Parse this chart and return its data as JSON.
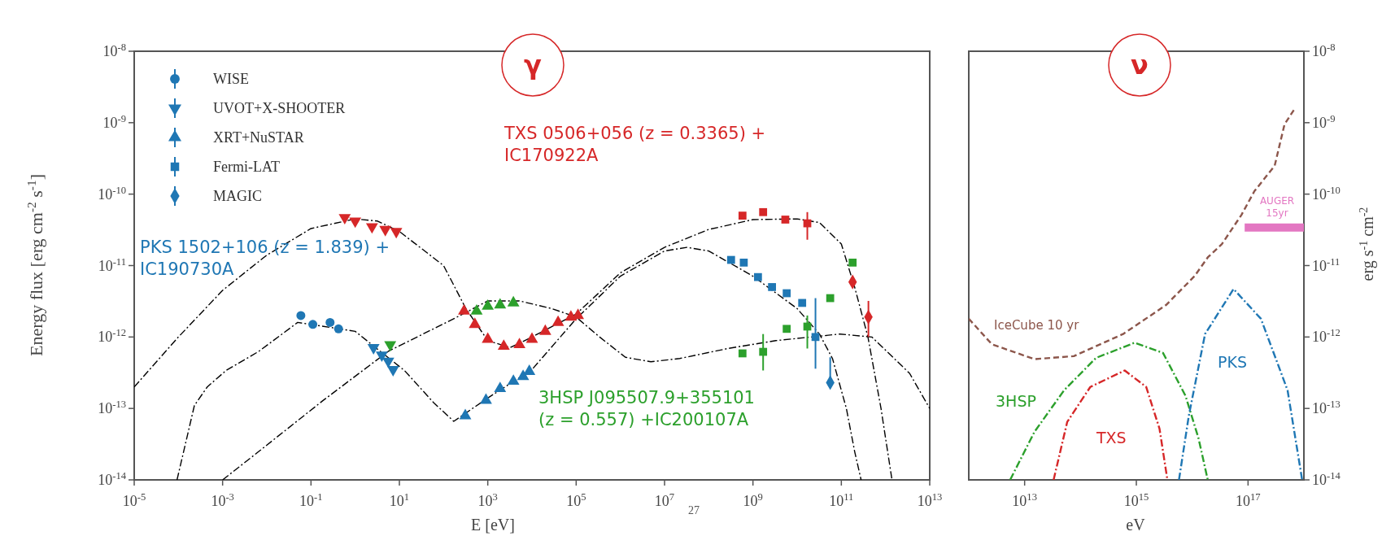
{
  "chart_data": [
    {
      "type": "scatter",
      "title": "γ",
      "xlabel": "E [eV]",
      "ylabel": "Energy flux [erg cm$^{-2}$ s$^{-1}$]",
      "xlim": [
        1e-05,
        10000000000000.0
      ],
      "ylim": [
        1e-14,
        1e-08
      ],
      "xticks": [
        {
          "value": 1e-05,
          "label": "10$^{-5}$"
        },
        {
          "value": 0.001,
          "label": "10$^{-3}$"
        },
        {
          "value": 0.1,
          "label": "10$^{-1}$"
        },
        {
          "value": 10.0,
          "label": "10$^{1}$"
        },
        {
          "value": 1000.0,
          "label": "10$^{3}$"
        },
        {
          "value": 100000.0,
          "label": "10$^{5}$"
        },
        {
          "value": 10000000.0,
          "label": "10$^{7}$"
        },
        {
          "value": 1000000000.0,
          "label": "10$^{9}$"
        },
        {
          "value": 100000000000.0,
          "label": "10$^{11}$"
        },
        {
          "value": 10000000000000.0,
          "label": "10$^{13}$"
        }
      ],
      "yticks": [
        {
          "value": 1e-14,
          "label": "10$^{-14}$"
        },
        {
          "value": 1e-13,
          "label": "10$^{-13}$"
        },
        {
          "value": 1e-12,
          "label": "10$^{-12}$"
        },
        {
          "value": 1e-11,
          "label": "10$^{-11}$"
        },
        {
          "value": 1e-10,
          "label": "10$^{-10}$"
        },
        {
          "value": 1e-09,
          "label": "10$^{-9}$"
        },
        {
          "value": 1e-08,
          "label": "10$^{-8}$"
        }
      ],
      "log": "xy",
      "legend": "top left",
      "annotations": [
        "PKS 1502+106 (z = 1.839) + IC190730A",
        "TXS 0506+056 (z = 0.3365) + IC170922A",
        "3HSP J095507.9+355101 (z = 0.557) +IC200107A",
        "27"
      ],
      "series": [
        {
          "name": "WISE",
          "marker": "circle",
          "color": "#1f77b4",
          "x": [
            0.059,
            0.11,
            0.27,
            0.42
          ],
          "values": [
            2e-12,
            1.5e-12,
            1.6e-12,
            1.3e-12
          ]
        },
        {
          "name": "UVOT+X-SHOOTER",
          "marker": "triangle-down",
          "color": "#1f77b4",
          "x": [
            2.6,
            4.0,
            5.6,
            7.2
          ],
          "values": [
            7.1e-13,
            5.6e-13,
            4.6e-13,
            3.5e-13
          ]
        },
        {
          "name": "XRT+NuSTAR",
          "marker": "triangle",
          "color": "#1f77b4",
          "x": [
            310,
            910,
            1900,
            3800,
            6300,
            8700
          ],
          "values": [
            7.9e-14,
            1.3e-13,
            1.9e-13,
            2.4e-13,
            2.8e-13,
            3.3e-13
          ]
        },
        {
          "name": "Fermi-LAT",
          "marker": "square",
          "color": "#1f77b4",
          "x": [
            320000000.0,
            620000000.0,
            1300000000.0,
            2700000000.0,
            5800000000.0,
            13000000000.0,
            26000000000.0
          ],
          "values": [
            1.2e-11,
            1.1e-11,
            6.9e-12,
            5e-12,
            4.1e-12,
            3e-12,
            1e-12
          ],
          "errors": [
            null,
            null,
            null,
            null,
            null,
            null,
            [
              3.6e-13,
              3.5e-12
            ]
          ]
        },
        {
          "name": "MAGIC",
          "marker": "diamond",
          "color": "#1f77b4",
          "x": [
            56000000000.0
          ],
          "values": [
            2.3e-13
          ],
          "errors": [
            [
              2.3e-13,
              5.2e-13
            ]
          ]
        },
        {
          "type": "scatter",
          "marker": "triangle-down",
          "color": "#d62728",
          "x": [
            0.58,
            1.0,
            2.4,
            4.8,
            8.5
          ],
          "values": [
            4.7e-11,
            4.2e-11,
            3.5e-11,
            3.2e-11,
            3e-11
          ]
        },
        {
          "type": "scatter",
          "marker": "triangle",
          "color": "#d62728",
          "x": [
            290,
            510,
            1000,
            2300,
            5200,
            10000.0,
            20000.0,
            39000.0,
            76000.0,
            110000.0
          ],
          "values": [
            2.3e-12,
            1.5e-12,
            9.3e-13,
            7.4e-13,
            7.8e-13,
            9.3e-13,
            1.2e-12,
            1.6e-12,
            1.9e-12,
            2e-12
          ]
        },
        {
          "type": "scatter",
          "marker": "square",
          "color": "#d62728",
          "x": [
            580000000.0,
            1700000000.0,
            5400000000.0,
            17000000000.0
          ],
          "values": [
            5e-11,
            5.6e-11,
            4.4e-11,
            3.9e-11
          ],
          "errors": [
            null,
            null,
            null,
            [
              2.3e-11,
              5.6e-11
            ]
          ]
        },
        {
          "type": "scatter",
          "marker": "diamond",
          "color": "#d62728",
          "x": [
            180000000000.0,
            410000000000.0
          ],
          "values": [
            5.9e-12,
            1.9e-12
          ],
          "errors": [
            null,
            [
              1e-12,
              3.2e-12
            ]
          ]
        },
        {
          "type": "scatter",
          "marker": "triangle-down",
          "color": "#2ca02c",
          "x": [
            6.2
          ],
          "values": [
            7.8e-13
          ]
        },
        {
          "type": "scatter",
          "marker": "triangle",
          "color": "#2ca02c",
          "x": [
            560,
            1000,
            1900,
            3800
          ],
          "values": [
            2.3e-12,
            2.7e-12,
            2.8e-12,
            3e-12
          ]
        },
        {
          "type": "scatter",
          "marker": "square",
          "color": "#2ca02c",
          "x": [
            580000000.0,
            1700000000.0,
            5800000000.0,
            17000000000.0,
            56000000000.0,
            180000000000.0
          ],
          "values": [
            5.9e-13,
            6.2e-13,
            1.3e-12,
            1.4e-12,
            3.5e-12,
            1.1e-11
          ],
          "errors": [
            null,
            [
              3.4e-13,
              1.1e-12
            ],
            null,
            [
              6.9e-13,
              2e-12
            ],
            null,
            null
          ]
        },
        {
          "type": "line",
          "marker": "none",
          "line_style": "dashdot",
          "color": "#000000",
          "x": [
            1e-05,
            0.0001,
            0.001,
            0.01,
            0.1,
            1,
            3.2,
            10,
            100,
            320,
            1000.0,
            3200,
            10000.0,
            100000.0,
            1000000.0,
            10000000.0,
            100000000.0,
            1000000000.0,
            10000000000.0,
            32000000000.0,
            100000000000.0,
            200000000000.0,
            400000000000.0,
            790000000000.0,
            1400000000000.0
          ],
          "values": [
            2e-13,
            1e-12,
            4.5e-12,
            1.4e-11,
            3.3e-11,
            4.5e-11,
            4.2e-11,
            3e-11,
            1e-11,
            2.5e-12,
            8.9e-13,
            7.1e-13,
            1e-12,
            2.1e-12,
            7.9e-12,
            1.8e-11,
            3.2e-11,
            4.4e-11,
            4.5e-11,
            4e-11,
            2e-11,
            5e-12,
            1e-12,
            1e-13,
            1e-14
          ]
        },
        {
          "type": "line",
          "marker": "none",
          "line_style": "dashdot",
          "color": "#000000",
          "x": [
            9.3e-05,
            0.00023,
            0.00045,
            0.0012,
            0.0066,
            0.05,
            0.45,
            1.0,
            2.4,
            13,
            60,
            170,
            1000,
            10000.0,
            100000.0,
            1000000.0,
            10000000.0,
            32000000.0,
            100000000.0,
            1000000000.0,
            10000000000.0,
            32000000000.0,
            63000000000.0,
            130000000000.0,
            200000000000.0,
            280000000000.0
          ],
          "values": [
            1e-14,
            1.1e-13,
            2e-13,
            3.4e-13,
            6.3e-13,
            1.6e-12,
            1.3e-12,
            1.2e-12,
            7.8e-13,
            3.4e-13,
            1.2e-13,
            6.6e-14,
            1.4e-13,
            3.5e-13,
            1.8e-12,
            7.1e-12,
            1.6e-11,
            1.8e-11,
            1.6e-11,
            7.1e-12,
            2.5e-12,
            1.1e-12,
            5e-13,
            1e-13,
            2.5e-14,
            1e-14
          ]
        },
        {
          "type": "line",
          "marker": "none",
          "line_style": "dashdot",
          "color": "#000000",
          "x": [
            0.001,
            0.0066,
            0.19,
            5.6,
            170,
            1000.0,
            5200,
            28000.0,
            100000.0,
            340000.0,
            1300000.0,
            4900000.0,
            22000000.0,
            270000000.0,
            3300000000.0,
            93000000000.0,
            490000000000.0,
            3500000000000.0,
            10000000000000.0
          ],
          "values": [
            1e-14,
            2.5e-14,
            1.3e-13,
            6.3e-13,
            1.8e-12,
            3.2e-12,
            3.2e-12,
            2.5e-12,
            1.9e-12,
            1e-12,
            5.2e-13,
            4.5e-13,
            5e-13,
            6.9e-13,
            8.9e-13,
            1.1e-12,
            1e-12,
            3.1e-13,
            1e-13
          ]
        }
      ]
    },
    {
      "type": "line",
      "title": "ν",
      "xlabel": "eV",
      "ylabel": "erg s$^{-1}$ cm$^{-2}$",
      "xlim": [
        1000000000000.0,
        1e+18
      ],
      "ylim": [
        1e-14,
        1e-08
      ],
      "xticks": [
        {
          "value": 10000000000000.0,
          "label": "10$^{13}$"
        },
        {
          "value": 1000000000000000.0,
          "label": "10$^{15}$"
        },
        {
          "value": 1e+17,
          "label": "10$^{17}$"
        }
      ],
      "yticks": [
        {
          "value": 1e-14,
          "label": "10$^{-14}$"
        },
        {
          "value": 1e-13,
          "label": "10$^{-13}$"
        },
        {
          "value": 1e-12,
          "label": "10$^{-12}$"
        },
        {
          "value": 1e-11,
          "label": "10$^{-11}$"
        },
        {
          "value": 1e-10,
          "label": "10$^{-10}$"
        },
        {
          "value": 1e-09,
          "label": "10$^{-9}$"
        },
        {
          "value": 1e-08,
          "label": "10$^{-8}$"
        }
      ],
      "log": "xy",
      "series": [
        {
          "name": "IceCube 10 yr",
          "line_style": "dashed",
          "color": "#8c564b",
          "x": [
            1000000000000.0,
            2600000000000.0,
            15000000000000.0,
            76000000000000.0,
            580000000000000.0,
            3400000000000000.0,
            1.1e+16,
            1.9e+16,
            3.4e+16,
            7.6e+16,
            1.3e+17,
            3e+17,
            4.5e+17,
            6.6e+17
          ],
          "values": [
            1.8e-12,
            7.9e-13,
            4.9e-13,
            5.4e-13,
            1.1e-12,
            2.8e-12,
            7.1e-12,
            1.3e-11,
            2e-11,
            5.1e-11,
            1.1e-10,
            2.5e-10,
            9.5e-10,
            1.5e-09
          ]
        },
        {
          "name": "AUGER 15yr",
          "color": "#e377c2",
          "x": [
            8.7e+16,
            1e+18
          ],
          "values": [
            3.4e-11,
            3.4e-11
          ]
        },
        {
          "name": "3HSP",
          "line_style": "dashdot",
          "color": "#2ca02c",
          "x": [
            5500000000000.0,
            15000000000000.0,
            51000000000000.0,
            190000000000000.0,
            930000000000000.0,
            3000000000000000.0,
            7600000000000000.0,
            1.3e+16,
            1.9e+16
          ],
          "values": [
            1e-14,
            4.7e-14,
            1.8e-13,
            5.1e-13,
            8.3e-13,
            6e-13,
            1.5e-13,
            3.8e-14,
            1e-14
          ]
        },
        {
          "name": "TXS",
          "line_style": "dashdot",
          "color": "#d62728",
          "x": [
            33000000000000.0,
            58000000000000.0,
            150000000000000.0,
            620000000000000.0,
            1500000000000000.0,
            2600000000000000.0,
            3600000000000000.0
          ],
          "values": [
            1e-14,
            6.5e-14,
            2e-13,
            3.4e-13,
            2e-13,
            5.2e-14,
            1e-14
          ]
        },
        {
          "name": "PKS",
          "line_style": "dashdot",
          "color": "#1f77b4",
          "x": [
            5800000000000000.0,
            8700000000000000.0,
            1.7e+16,
            5.5e+16,
            1.7e+17,
            5.1e+17,
            9.3e+17
          ],
          "values": [
            1e-14,
            7.9e-14,
            1.1e-12,
            4.7e-12,
            1.8e-12,
            1.8e-13,
            1e-14
          ]
        }
      ]
    }
  ]
}
